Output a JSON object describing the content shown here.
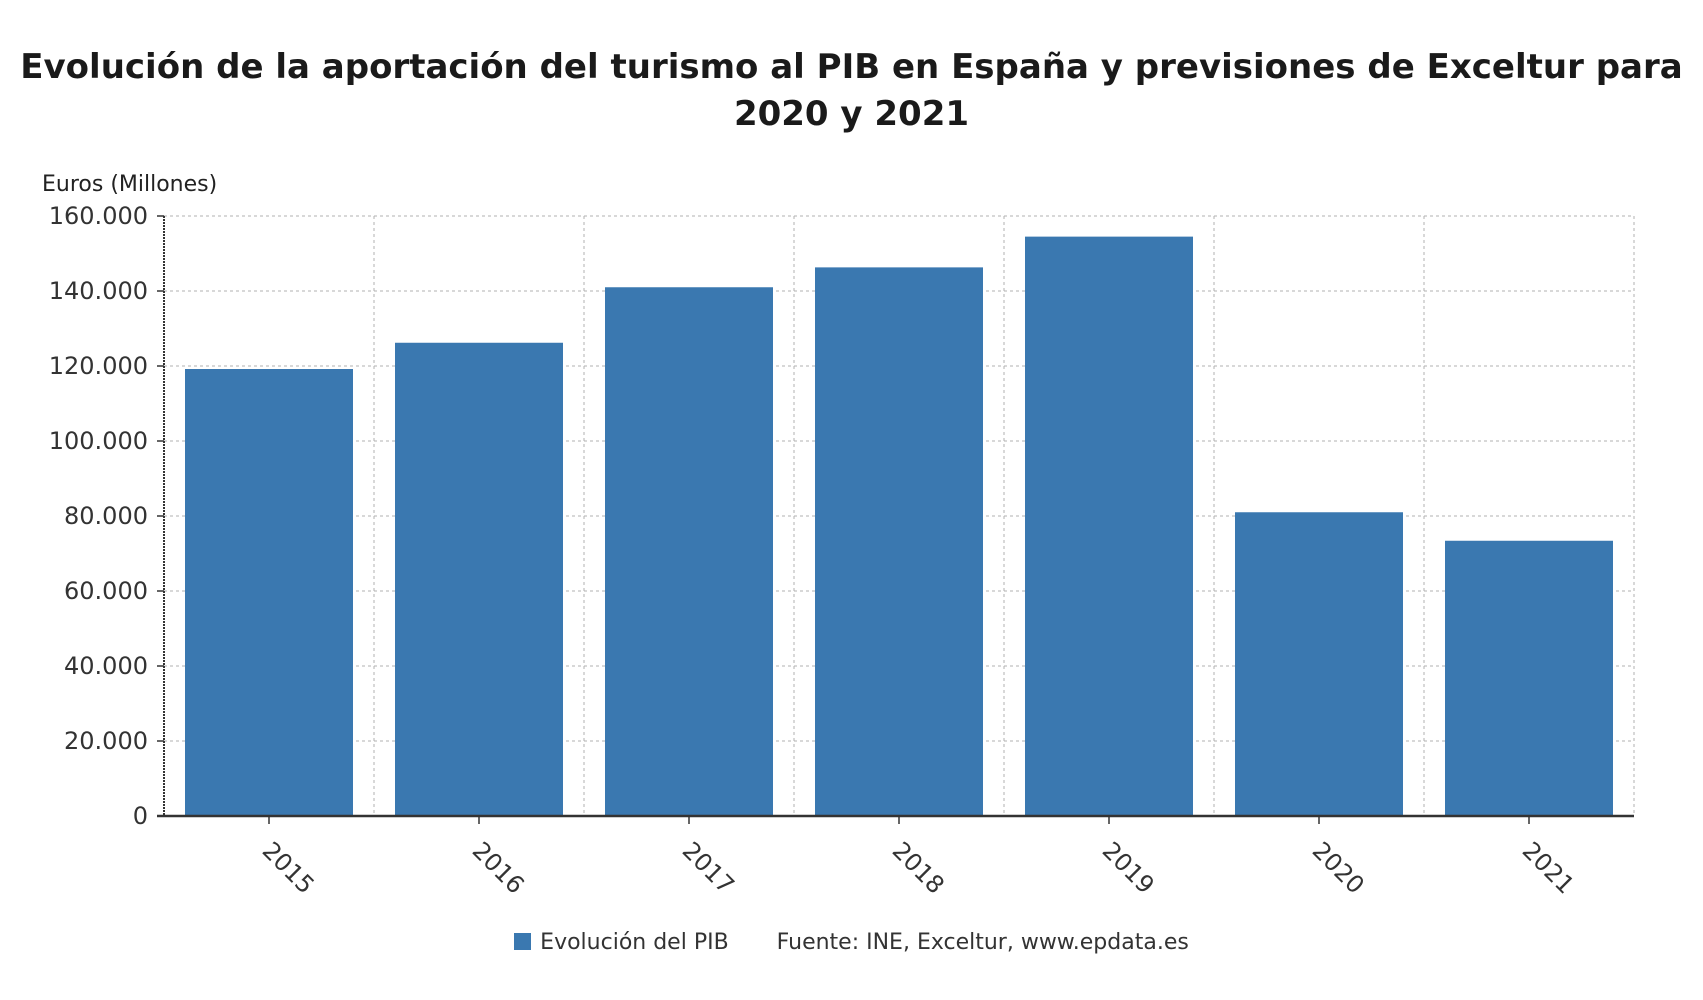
{
  "title_lines": [
    "Evolución de la aportación del turismo al PIB en España y previsiones de Exceltur para",
    "2020 y 2021"
  ],
  "chart_data": {
    "type": "bar",
    "title": "Evolución de la aportación del turismo al PIB en España y previsiones de Exceltur para 2020 y 2021",
    "ylabel": "Euros (Millones)",
    "xlabel": "",
    "categories": [
      "2015",
      "2016",
      "2017",
      "2018",
      "2019",
      "2020",
      "2021"
    ],
    "series": [
      {
        "name": "Evolución del PIB",
        "values": [
          119200,
          126200,
          141000,
          146300,
          154500,
          81000,
          73400
        ]
      }
    ],
    "ylim": [
      0,
      160000
    ],
    "yticks": [
      0,
      20000,
      40000,
      60000,
      80000,
      100000,
      120000,
      140000,
      160000
    ],
    "ytick_labels": [
      "0",
      "20.000",
      "40.000",
      "60.000",
      "80.000",
      "100.000",
      "120.000",
      "140.000",
      "160.000"
    ],
    "grid": true,
    "legend_position": "bottom"
  },
  "legend": {
    "label": "Evolución del PIB",
    "color": "#3a78b0"
  },
  "source": "Fuente: INE, Exceltur, www.epdata.es",
  "colors": {
    "bar": "#3a78b0",
    "grid": "#b0b0b0",
    "axis": "#333333",
    "text": "#333333"
  }
}
